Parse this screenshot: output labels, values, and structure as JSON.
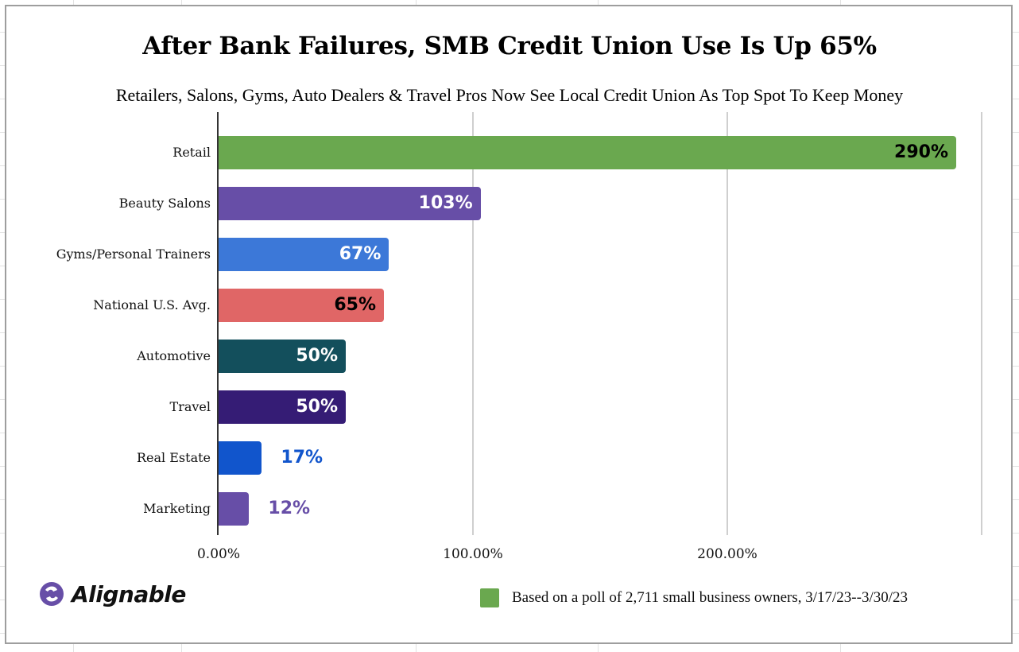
{
  "chart_data": {
    "type": "bar",
    "orientation": "horizontal",
    "title": "After Bank Failures, SMB Credit Union Use Is Up 65%",
    "subtitle": "Retailers, Salons, Gyms, Auto Dealers & Travel Pros Now See Local Credit Union As Top Spot To Keep Money",
    "categories": [
      "Retail",
      "Beauty Salons",
      "Gyms/Personal Trainers",
      "National U.S. Avg.",
      "Automotive",
      "Travel",
      "Real Estate",
      "Marketing"
    ],
    "values": [
      290,
      103,
      67,
      65,
      50,
      50,
      17,
      12
    ],
    "value_labels": [
      "290%",
      "103%",
      "67%",
      "65%",
      "50%",
      "50%",
      "17%",
      "12%"
    ],
    "bar_colors": [
      "#6aa84f",
      "#674ea7",
      "#3c78d8",
      "#e06666",
      "#134f5c",
      "#351c75",
      "#1155cc",
      "#674ea7"
    ],
    "label_colors": [
      "#000000",
      "#ffffff",
      "#ffffff",
      "#000000",
      "#ffffff",
      "#ffffff",
      "#1155cc",
      "#674ea7"
    ],
    "label_inside": [
      true,
      true,
      true,
      true,
      true,
      true,
      false,
      false
    ],
    "xlabel": "",
    "ylabel": "",
    "x_ticks": [
      "0.00%",
      "100.00%",
      "200.00%"
    ],
    "xlim": [
      0,
      300
    ],
    "grid": true,
    "legend": {
      "position": "bottom-right",
      "entries": [
        {
          "label": "Based on a poll of 2,711 small business owners, 3/17/23--3/30/23",
          "color": "#6aa84f"
        }
      ]
    }
  },
  "branding": {
    "logo_text": "Alignable",
    "logo_color": "#674ea7"
  }
}
